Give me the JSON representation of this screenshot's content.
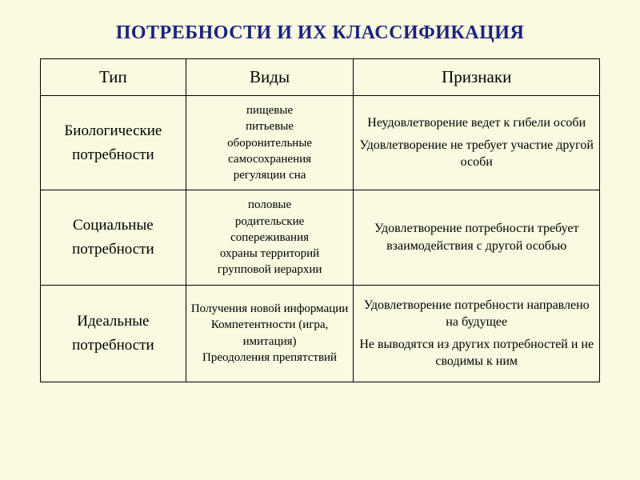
{
  "title": "ПОТРЕБНОСТИ И ИХ КЛАССИФИКАЦИЯ",
  "colors": {
    "background": "#fafae0",
    "title": "#1a237e",
    "text": "#000000",
    "border": "#000000"
  },
  "fonts": {
    "family": "Times New Roman",
    "title_size_pt": 24,
    "header_size_pt": 21,
    "type_size_pt": 19,
    "list_size_pt": 15,
    "feature_size_pt": 16
  },
  "table": {
    "column_widths_pct": [
      26,
      30,
      44
    ],
    "headers": {
      "c1": "Тип",
      "c2": "Виды",
      "c3": "Признаки"
    },
    "rows": [
      {
        "type_l1": "Биологические",
        "type_l2": "потребности",
        "kinds": [
          "пищевые",
          "питьевые",
          "оборонительные",
          "самосохранения",
          "регуляции сна"
        ],
        "feat1": "Неудовлетворение ведет к гибели особи",
        "feat2": "Удовлетворение не требует участие другой особи"
      },
      {
        "type_l1": "Социальные",
        "type_l2": "потребности",
        "kinds": [
          "половые",
          "родительские",
          "сопереживания",
          "охраны территорий",
          "групповой иерархии"
        ],
        "feat1": "Удовлетворение потребности требует взаимодействия с другой особью",
        "feat2": ""
      },
      {
        "type_l1": "Идеальные",
        "type_l2": "потребности",
        "kinds": [
          "Получения новой информации",
          "Компетентности (игра, имитация)",
          "Преодоления препятствий"
        ],
        "feat1": "Удовлетворение потребности направлено на будущее",
        "feat2": "Не выводятся из других потребностей и не сводимы к ним"
      }
    ]
  }
}
